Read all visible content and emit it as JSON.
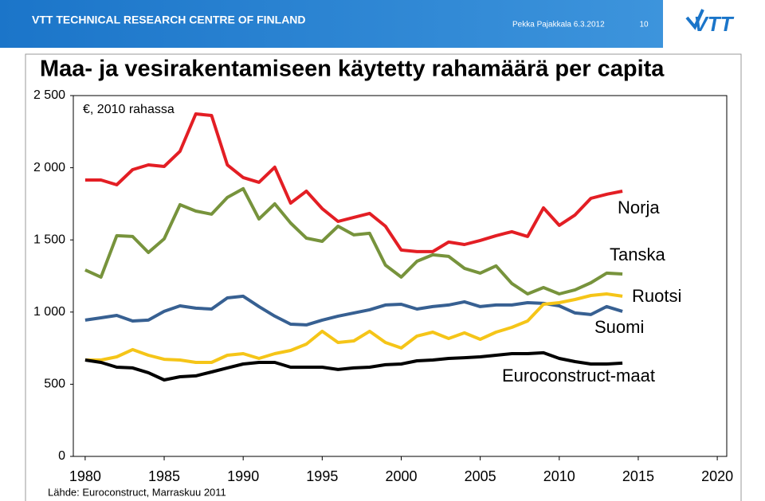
{
  "header": {
    "org": "VTT TECHNICAL RESEARCH CENTRE OF FINLAND",
    "author": "Pekka Pajakkala 6.3.2012",
    "page": "10"
  },
  "chart_data": {
    "type": "line",
    "title": "Maa- ja vesirakentamiseen käytetty rahamäärä per capita",
    "annotation": "€, 2010 rahassa",
    "source": "Lähde: Euroconstruct, Marraskuu 2011",
    "x": [
      1980,
      1981,
      1982,
      1983,
      1984,
      1985,
      1986,
      1987,
      1988,
      1989,
      1990,
      1991,
      1992,
      1993,
      1994,
      1995,
      1996,
      1997,
      1998,
      1999,
      2000,
      2001,
      2002,
      2003,
      2004,
      2005,
      2006,
      2007,
      2008,
      2009,
      2010,
      2011,
      2012,
      2013,
      2014
    ],
    "xlim": [
      1979.25,
      2020.6
    ],
    "xticks": [
      1980,
      1985,
      1990,
      1995,
      2000,
      2005,
      2010,
      2015,
      2020
    ],
    "ylim": [
      0,
      2500
    ],
    "yticks": [
      0,
      500,
      {
        "value": 1000,
        "label": "1 000"
      },
      {
        "value": 1500,
        "label": "1 500"
      },
      {
        "value": 2000,
        "label": "2 000"
      },
      {
        "value": 2500,
        "label": "2 500"
      }
    ],
    "grid": false,
    "series": [
      {
        "name": "Norja",
        "color": "#e31e24",
        "values": [
          1915,
          1915,
          1882,
          1987,
          2020,
          2009,
          2114,
          2373,
          2362,
          2020,
          1932,
          1899,
          2004,
          1755,
          1838,
          1717,
          1628,
          1656,
          1684,
          1595,
          1430,
          1419,
          1419,
          1485,
          1468,
          1496,
          1529,
          1557,
          1524,
          1722,
          1601,
          1673,
          1788,
          1816,
          1838
        ]
      },
      {
        "name": "Tanska",
        "color": "#77933c",
        "values": [
          1292,
          1242,
          1529,
          1524,
          1413,
          1507,
          1744,
          1700,
          1678,
          1794,
          1855,
          1645,
          1750,
          1617,
          1512,
          1490,
          1595,
          1535,
          1546,
          1325,
          1242,
          1352,
          1397,
          1386,
          1303,
          1270,
          1320,
          1198,
          1126,
          1170,
          1126,
          1154,
          1203,
          1270,
          1264
        ]
      },
      {
        "name": "Ruotsi",
        "color": "#376092",
        "values": [
          944,
          960,
          977,
          938,
          944,
          1005,
          1043,
          1027,
          1021,
          1098,
          1110,
          1038,
          972,
          916,
          911,
          944,
          972,
          994,
          1016,
          1049,
          1054,
          1021,
          1038,
          1049,
          1071,
          1038,
          1049,
          1049,
          1065,
          1060,
          1043,
          994,
          983,
          1038,
          1005
        ]
      },
      {
        "name": "Suomi",
        "color": "#f5c518",
        "values": [
          668,
          668,
          690,
          740,
          701,
          673,
          668,
          651,
          651,
          701,
          712,
          679,
          712,
          734,
          778,
          867,
          789,
          800,
          867,
          789,
          751,
          834,
          861,
          817,
          856,
          811,
          861,
          894,
          938,
          1054,
          1065,
          1087,
          1115,
          1126,
          1110
        ]
      },
      {
        "name": "Euroconstruct-maat",
        "color": "#000000",
        "values": [
          668,
          651,
          618,
          613,
          580,
          530,
          552,
          558,
          585,
          613,
          640,
          651,
          651,
          618,
          618,
          618,
          602,
          613,
          618,
          635,
          640,
          662,
          668,
          679,
          684,
          690,
          701,
          712,
          712,
          718,
          679,
          657,
          640,
          640,
          646
        ]
      }
    ]
  }
}
